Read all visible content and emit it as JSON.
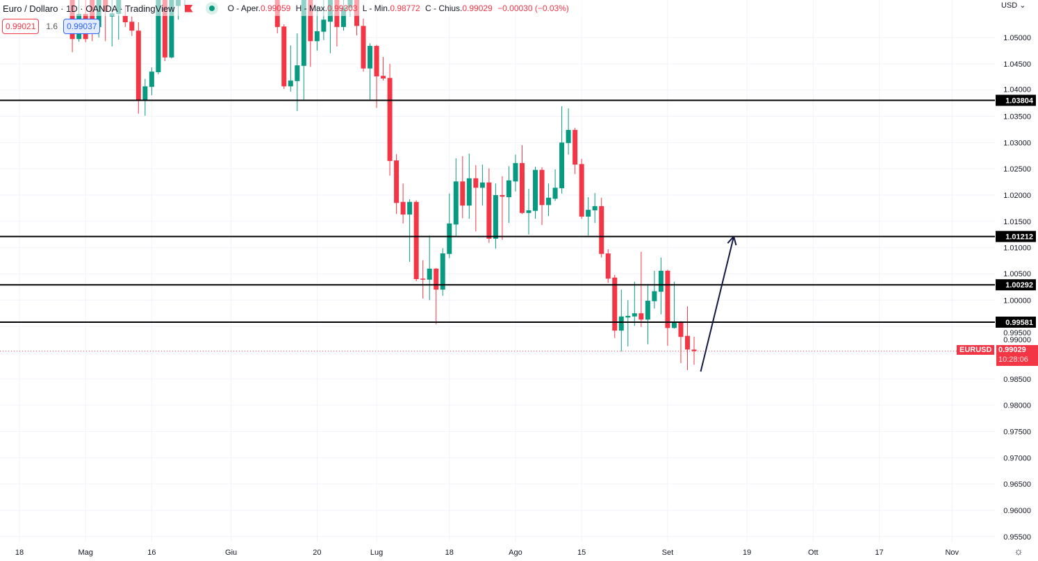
{
  "header": {
    "symbol": "Euro / Dollaro · 1D · OANDA · TradingView",
    "ohlc": {
      "open_label": "O - Aper.",
      "open": "0.99059",
      "high_label": "H - Max.",
      "high": "0.99303",
      "low_label": "L - Min.",
      "low": "0.98772",
      "close_label": "C - Chius.",
      "close": "0.99029",
      "change": "−0.00030 (−0.03%)"
    },
    "bid": "0.99021",
    "spread": "1.6",
    "ask": "0.99037"
  },
  "price_axis": {
    "currency": "USD ⌄",
    "ticks": [
      "1.05000",
      "1.04500",
      "1.04000",
      "1.03500",
      "1.03000",
      "1.02500",
      "1.02000",
      "1.01500",
      "1.01000",
      "1.00500",
      "1.00000",
      "0.99500",
      "0.99000",
      "0.98500",
      "0.98000",
      "0.97500",
      "0.97000",
      "0.96500",
      "0.96000",
      "0.95500"
    ],
    "symbol_tag": "EURUSD",
    "last_price": "0.99029",
    "countdown": "10:28:06"
  },
  "colors": {
    "up": "#089981",
    "down": "#f23645",
    "levels": "#000000",
    "arrow": "#131745",
    "last": "#f23645"
  },
  "chart_data": {
    "type": "candlestick",
    "title": "Euro / Dollaro · 1D · OANDA",
    "x_unit": "trading-day index",
    "ylim": [
      0.952,
      1.0571
    ],
    "date_labels": [
      {
        "i": -2,
        "label": "18"
      },
      {
        "i": 8,
        "label": "Mag"
      },
      {
        "i": 18,
        "label": "16"
      },
      {
        "i": 30,
        "label": "Giu"
      },
      {
        "i": 43,
        "label": "20"
      },
      {
        "i": 52,
        "label": "Lug"
      },
      {
        "i": 63,
        "label": "18"
      },
      {
        "i": 73,
        "label": "Ago"
      },
      {
        "i": 83,
        "label": "15"
      },
      {
        "i": 96,
        "label": "Set"
      },
      {
        "i": 108,
        "label": "19"
      },
      {
        "i": 118,
        "label": "Ott"
      },
      {
        "i": 128,
        "label": "17"
      },
      {
        "i": 139,
        "label": "Nov"
      }
    ],
    "candles_fields": [
      "i",
      "open",
      "high",
      "low",
      "close"
    ],
    "candles": [
      [
        6,
        1.062,
        1.065,
        1.0472,
        1.0497
      ],
      [
        7,
        1.0497,
        1.058,
        1.0492,
        1.0545
      ],
      [
        8,
        1.0545,
        1.058,
        1.0491,
        1.0497
      ],
      [
        9,
        1.058,
        1.06,
        1.0493,
        1.052
      ],
      [
        10,
        1.052,
        1.062,
        1.05,
        1.06
      ],
      [
        11,
        1.06,
        1.063,
        1.0493,
        1.055
      ],
      [
        12,
        1.054,
        1.058,
        1.0483,
        1.0546
      ],
      [
        13,
        1.0545,
        1.062,
        1.0496,
        1.06
      ],
      [
        14,
        1.0541,
        1.056,
        1.052,
        1.0529
      ],
      [
        15,
        1.053,
        1.054,
        1.0503,
        1.0513
      ],
      [
        16,
        1.0513,
        1.0529,
        1.0355,
        1.0381
      ],
      [
        17,
        1.0381,
        1.0421,
        1.0351,
        1.0407
      ],
      [
        18,
        1.0406,
        1.0443,
        1.039,
        1.0435
      ],
      [
        19,
        1.0434,
        1.06,
        1.043,
        1.058
      ],
      [
        20,
        1.058,
        1.06,
        1.0455,
        1.0462
      ],
      [
        21,
        1.0462,
        1.062,
        1.046,
        1.06
      ],
      [
        22,
        1.056,
        1.063,
        1.0534,
        1.062
      ],
      [
        23,
        1.058,
        1.064,
        1.056,
        1.063
      ],
      [
        37,
        1.059,
        1.061,
        1.0508,
        1.052
      ],
      [
        38,
        1.0521,
        1.0525,
        1.0402,
        1.0407
      ],
      [
        39,
        1.0407,
        1.0485,
        1.0397,
        1.0418
      ],
      [
        40,
        1.0417,
        1.0508,
        1.036,
        1.0447
      ],
      [
        41,
        1.0446,
        1.0605,
        1.0382,
        1.059
      ],
      [
        42,
        1.059,
        1.06,
        1.0444,
        1.0493
      ],
      [
        43,
        1.0493,
        1.056,
        1.0475,
        1.0512
      ],
      [
        44,
        1.0511,
        1.058,
        1.0495,
        1.0534
      ],
      [
        45,
        1.053,
        1.06,
        1.047,
        1.0585
      ],
      [
        46,
        1.0585,
        1.06,
        1.0483,
        1.052
      ],
      [
        47,
        1.052,
        1.06,
        1.0513,
        1.0557
      ],
      [
        48,
        1.0557,
        1.062,
        1.054,
        1.06
      ],
      [
        49,
        1.06,
        1.062,
        1.0504,
        1.0522
      ],
      [
        50,
        1.0522,
        1.0536,
        1.0435,
        1.0441
      ],
      [
        51,
        1.0441,
        1.0489,
        1.0382,
        1.0484
      ],
      [
        52,
        1.0484,
        1.0486,
        1.0366,
        1.0426
      ],
      [
        53,
        1.0427,
        1.0463,
        1.0418,
        1.0422
      ],
      [
        54,
        1.0423,
        1.045,
        1.0237,
        1.0265
      ],
      [
        55,
        1.0266,
        1.0278,
        1.0164,
        1.0185
      ],
      [
        56,
        1.0187,
        1.0222,
        1.0146,
        1.0163
      ],
      [
        57,
        1.0163,
        1.0192,
        1.0073,
        1.0187
      ],
      [
        58,
        1.0187,
        1.019,
        1.0036,
        1.004
      ],
      [
        59,
        1.0041,
        1.0076,
        1.0003,
        1.0039
      ],
      [
        60,
        1.0039,
        1.0123,
        1.0,
        1.006
      ],
      [
        61,
        1.006,
        1.0061,
        0.9954,
        1.002
      ],
      [
        62,
        1.002,
        1.0099,
        1.0008,
        1.0089
      ],
      [
        63,
        1.0088,
        1.0203,
        1.008,
        1.0146
      ],
      [
        64,
        1.0144,
        1.027,
        1.0121,
        1.0226
      ],
      [
        65,
        1.0226,
        1.0274,
        1.0156,
        1.018
      ],
      [
        66,
        1.018,
        1.0279,
        1.0155,
        1.0232
      ],
      [
        67,
        1.0232,
        1.0257,
        1.0131,
        1.0214
      ],
      [
        68,
        1.0214,
        1.0258,
        1.018,
        1.0224
      ],
      [
        69,
        1.0224,
        1.0251,
        1.0109,
        1.0117
      ],
      [
        70,
        1.0117,
        1.0222,
        1.0098,
        1.02
      ],
      [
        71,
        1.02,
        1.0236,
        1.0115,
        1.0197
      ],
      [
        72,
        1.0196,
        1.0255,
        1.0147,
        1.0228
      ],
      [
        73,
        1.0226,
        1.0277,
        1.0207,
        1.0261
      ],
      [
        74,
        1.0261,
        1.0295,
        1.0164,
        1.0166
      ],
      [
        75,
        1.0166,
        1.0212,
        1.0125,
        1.0171
      ],
      [
        76,
        1.017,
        1.0254,
        1.0155,
        1.0248
      ],
      [
        77,
        1.0248,
        1.0253,
        1.0143,
        1.0181
      ],
      [
        78,
        1.0181,
        1.0222,
        1.016,
        1.0195
      ],
      [
        79,
        1.0193,
        1.0249,
        1.0189,
        1.0214
      ],
      [
        80,
        1.0213,
        1.0369,
        1.0203,
        1.03
      ],
      [
        81,
        1.0299,
        1.0365,
        1.0277,
        1.0324
      ],
      [
        82,
        1.0324,
        1.0328,
        1.024,
        1.0258
      ],
      [
        83,
        1.0259,
        1.0269,
        1.0155,
        1.0159
      ],
      [
        84,
        1.0159,
        1.0196,
        1.0123,
        1.0172
      ],
      [
        85,
        1.0171,
        1.0204,
        1.0147,
        1.0179
      ],
      [
        86,
        1.0179,
        1.0195,
        1.0081,
        1.0088
      ],
      [
        87,
        1.0089,
        1.0097,
        1.0033,
        1.0041
      ],
      [
        88,
        1.0043,
        1.0048,
        0.9928,
        0.9942
      ],
      [
        89,
        0.9942,
        1.002,
        0.9902,
        0.9969
      ],
      [
        90,
        0.9967,
        1.0,
        0.9912,
        0.997
      ],
      [
        91,
        0.9969,
        1.0035,
        0.9951,
        0.9975
      ],
      [
        92,
        0.9975,
        1.0092,
        0.9949,
        0.9963
      ],
      [
        93,
        0.9963,
        1.0031,
        0.9916,
        0.9999
      ],
      [
        94,
        0.9998,
        1.0056,
        0.9984,
        1.0017
      ],
      [
        95,
        1.0016,
        1.0081,
        0.9973,
        1.0056
      ],
      [
        96,
        1.0056,
        1.0058,
        0.9913,
        0.9947
      ],
      [
        97,
        0.9947,
        1.0035,
        0.9946,
        0.9959
      ],
      [
        98,
        0.9959,
        0.996,
        0.988,
        0.993
      ],
      [
        99,
        0.9932,
        0.9988,
        0.9867,
        0.9906
      ],
      [
        100,
        0.99059,
        0.99303,
        0.98772,
        0.99029
      ]
    ],
    "horizontal_levels": [
      "1.03804",
      "1.01212",
      "1.00292",
      "0.99581"
    ],
    "last_price_line": 0.99029,
    "arrow": {
      "from": {
        "i": 101,
        "price": 0.9864
      },
      "to": {
        "i": 106,
        "price": 1.01212
      }
    }
  }
}
